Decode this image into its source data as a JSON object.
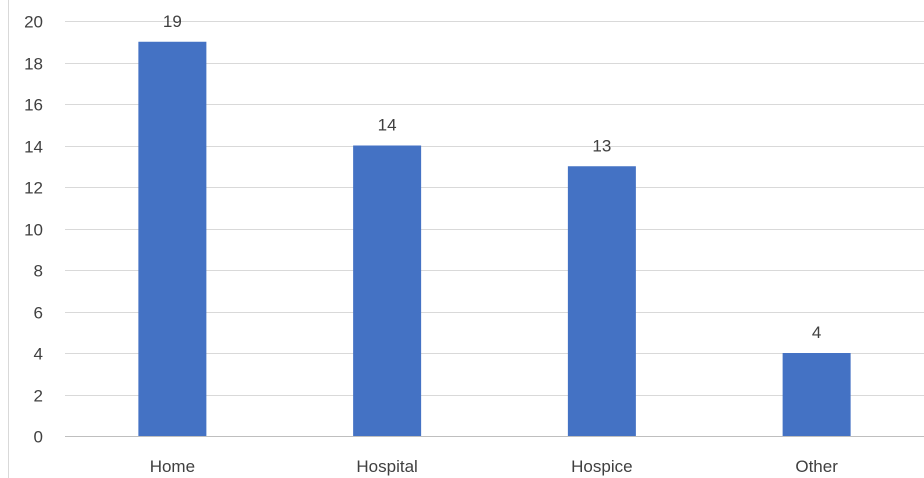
{
  "chart_data": {
    "type": "bar",
    "title": "",
    "xlabel": "",
    "ylabel": "",
    "categories": [
      "Home",
      "Hospital",
      "Hospice",
      "Other"
    ],
    "values": [
      19,
      14,
      13,
      4
    ],
    "data_labels": [
      "19",
      "14",
      "13",
      "4"
    ],
    "ylim": [
      0,
      20
    ],
    "yticks": [
      0,
      2,
      4,
      6,
      8,
      10,
      12,
      14,
      16,
      18,
      20
    ],
    "ytick_labels": [
      "0",
      "2",
      "4",
      "6",
      "8",
      "10",
      "12",
      "14",
      "16",
      "18",
      "20"
    ],
    "grid": true,
    "legend": "none",
    "bar_color": "#4472c4",
    "gridline_color": "#d9d9d9",
    "text_color": "#404040"
  }
}
